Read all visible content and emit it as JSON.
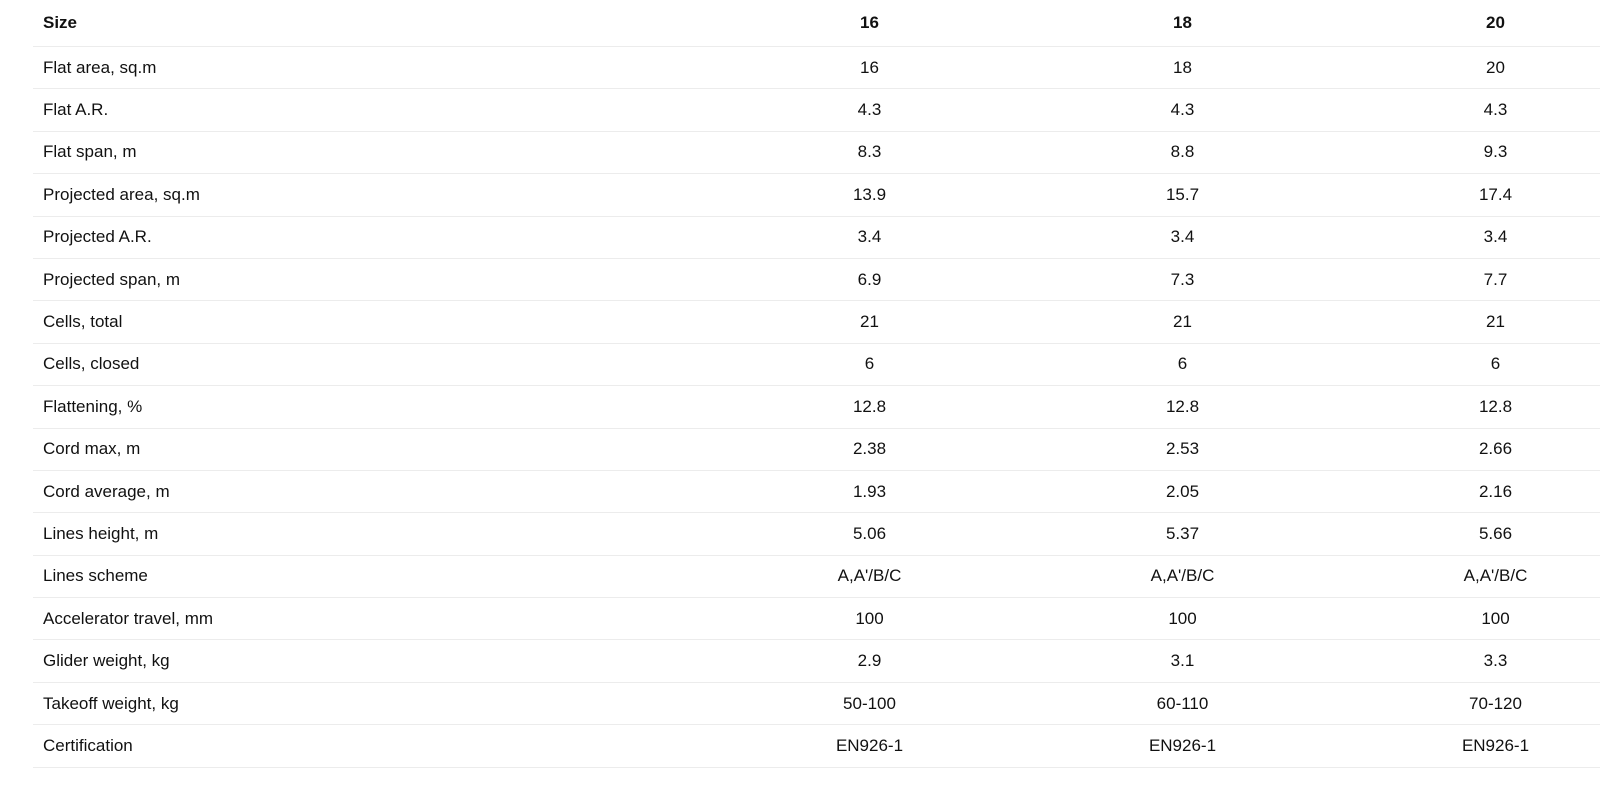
{
  "table": {
    "header": [
      "Size",
      "16",
      "18",
      "20"
    ],
    "rows": [
      [
        "Flat area, sq.m",
        "16",
        "18",
        "20"
      ],
      [
        "Flat A.R.",
        "4.3",
        "4.3",
        "4.3"
      ],
      [
        "Flat span, m",
        "8.3",
        "8.8",
        "9.3"
      ],
      [
        "Projected area, sq.m",
        "13.9",
        "15.7",
        "17.4"
      ],
      [
        "Projected A.R.",
        "3.4",
        "3.4",
        "3.4"
      ],
      [
        "Projected span, m",
        "6.9",
        "7.3",
        "7.7"
      ],
      [
        "Cells, total",
        "21",
        "21",
        "21"
      ],
      [
        "Cells, closed",
        "6",
        "6",
        "6"
      ],
      [
        "Flattening, %",
        "12.8",
        "12.8",
        "12.8"
      ],
      [
        "Cord max, m",
        "2.38",
        "2.53",
        "2.66"
      ],
      [
        "Cord average, m",
        "1.93",
        "2.05",
        "2.16"
      ],
      [
        "Lines height, m",
        "5.06",
        "5.37",
        "5.66"
      ],
      [
        "Lines scheme",
        "A,A'/B/C",
        "A,A'/B/C",
        "A,A'/B/C"
      ],
      [
        "Accelerator travel, mm",
        "100",
        "100",
        "100"
      ],
      [
        "Glider weight, kg",
        "2.9",
        "3.1",
        "3.3"
      ],
      [
        "Takeoff weight, kg",
        "50-100",
        "60-110",
        "70-120"
      ],
      [
        "Certification",
        "EN926-1",
        "EN926-1",
        "EN926-1"
      ]
    ]
  }
}
